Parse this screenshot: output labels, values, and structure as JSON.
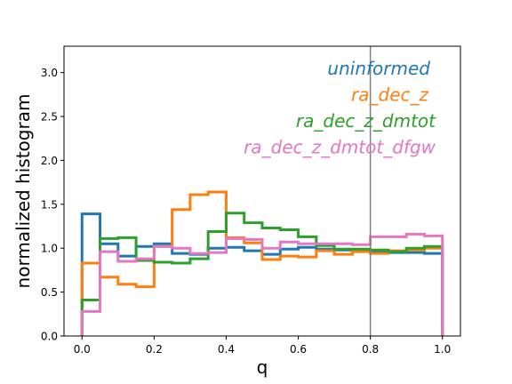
{
  "chart_data": {
    "type": "histogram-step",
    "xlabel": "q",
    "ylabel": "normalized histogram",
    "xlim": [
      -0.05,
      1.05
    ],
    "ylim": [
      0.0,
      3.3
    ],
    "x_ticks": [
      0.0,
      0.2,
      0.4,
      0.6,
      0.8,
      1.0
    ],
    "x_tick_labels": [
      "0.0",
      "0.2",
      "0.4",
      "0.6",
      "0.8",
      "1.0"
    ],
    "y_ticks": [
      0.0,
      0.5,
      1.0,
      1.5,
      2.0,
      2.5,
      3.0
    ],
    "y_tick_labels": [
      "0.0",
      "0.5",
      "1.0",
      "1.5",
      "2.0",
      "2.5",
      "3.0"
    ],
    "grid": false,
    "legend_placement": "top-right",
    "vertical_line": {
      "x": 0.8,
      "color": "#7f7f7f"
    },
    "bin_edges": [
      0.0,
      0.05,
      0.1,
      0.15,
      0.2,
      0.25,
      0.3,
      0.35,
      0.4,
      0.45,
      0.5,
      0.55,
      0.6,
      0.65,
      0.7,
      0.75,
      0.8,
      0.85,
      0.9,
      0.95,
      1.0
    ],
    "series": [
      {
        "name": "uninformed",
        "color": "#1f77b4",
        "values": [
          1.39,
          1.05,
          0.91,
          1.02,
          1.05,
          0.94,
          0.93,
          1.0,
          1.01,
          0.97,
          0.93,
          0.99,
          1.01,
          0.99,
          0.98,
          0.97,
          0.96,
          0.95,
          0.95,
          0.94
        ]
      },
      {
        "name": "ra_dec_z",
        "color": "#ff7f0e",
        "values": [
          0.83,
          0.67,
          0.59,
          0.56,
          1.02,
          1.44,
          1.61,
          1.64,
          1.12,
          1.06,
          0.87,
          0.91,
          0.9,
          0.97,
          0.93,
          0.96,
          0.94,
          0.97,
          0.98,
          1.0
        ]
      },
      {
        "name": "ra_dec_z_dmtot",
        "color": "#2ca02c",
        "values": [
          0.41,
          1.11,
          1.12,
          0.86,
          0.84,
          0.83,
          0.88,
          1.19,
          1.4,
          1.29,
          1.23,
          1.21,
          1.13,
          1.03,
          0.99,
          0.99,
          0.98,
          0.96,
          1.0,
          1.02
        ]
      },
      {
        "name": "ra_dec_z_dmtot_dfgw",
        "color": "#e377c2",
        "values": [
          0.28,
          0.96,
          0.85,
          0.88,
          1.02,
          1.0,
          0.94,
          0.95,
          1.11,
          1.1,
          1.0,
          1.07,
          1.05,
          1.05,
          1.05,
          1.04,
          1.13,
          1.13,
          1.16,
          1.14
        ]
      }
    ]
  }
}
